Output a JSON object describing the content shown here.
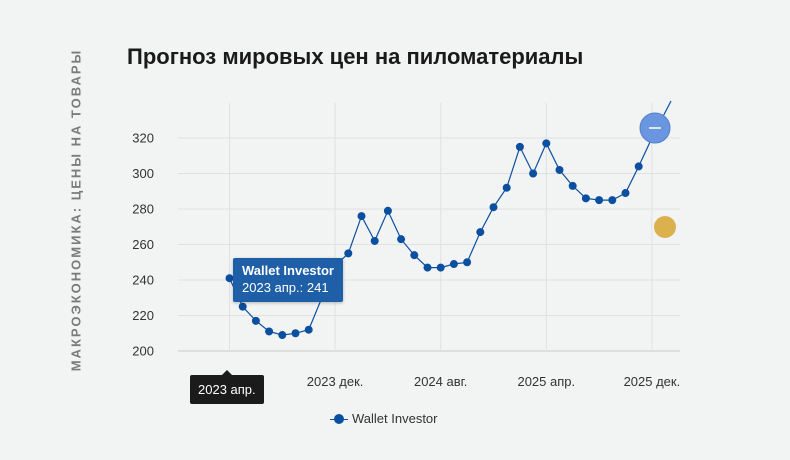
{
  "sidebar": {
    "label": "МАКРОЭКОНОМИКА: ЦЕНЫ НА ТОВАРЫ"
  },
  "colors": {
    "series": "#0b4fa0",
    "tooltip": "#1e5fa8",
    "zoom": "#6a95df",
    "marker": "#d8aa3c"
  },
  "icons": {
    "zoom": "zoom-out-icon"
  },
  "chart_data": {
    "type": "line",
    "title": "Прогноз мировых цен на пиломатериалы",
    "ylim": [
      195,
      330
    ],
    "y_ticks": [
      200,
      220,
      240,
      260,
      280,
      300,
      320
    ],
    "x_tick_labels": [
      "2023 апр.",
      "2023 дек.",
      "2024 авг.",
      "2025 апр.",
      "2025 дек."
    ],
    "grid": true,
    "legend_position": "bottom",
    "series": [
      {
        "name": "Wallet Investor",
        "x": [
          "2023-04",
          "2023-05",
          "2023-06",
          "2023-07",
          "2023-08",
          "2023-09",
          "2023-10",
          "2023-11",
          "2023-12",
          "2024-01",
          "2024-02",
          "2024-03",
          "2024-04",
          "2024-05",
          "2024-06",
          "2024-07",
          "2024-08",
          "2024-09",
          "2024-10",
          "2024-11",
          "2024-12",
          "2025-01",
          "2025-02",
          "2025-03",
          "2025-04",
          "2025-05",
          "2025-06",
          "2025-07",
          "2025-08",
          "2025-09",
          "2025-10",
          "2025-11",
          "2025-12"
        ],
        "values": [
          241,
          225,
          217,
          211,
          209,
          210,
          212,
          230,
          248,
          255,
          276,
          262,
          279,
          263,
          254,
          247,
          247,
          249,
          250,
          267,
          281,
          292,
          315,
          300,
          317,
          302,
          293,
          286,
          285,
          285,
          289,
          304,
          320
        ]
      }
    ],
    "tooltip": {
      "series": "Wallet Investor",
      "text": "2023 апр.: 241"
    },
    "x_crosshair_label": "2023 апр."
  }
}
